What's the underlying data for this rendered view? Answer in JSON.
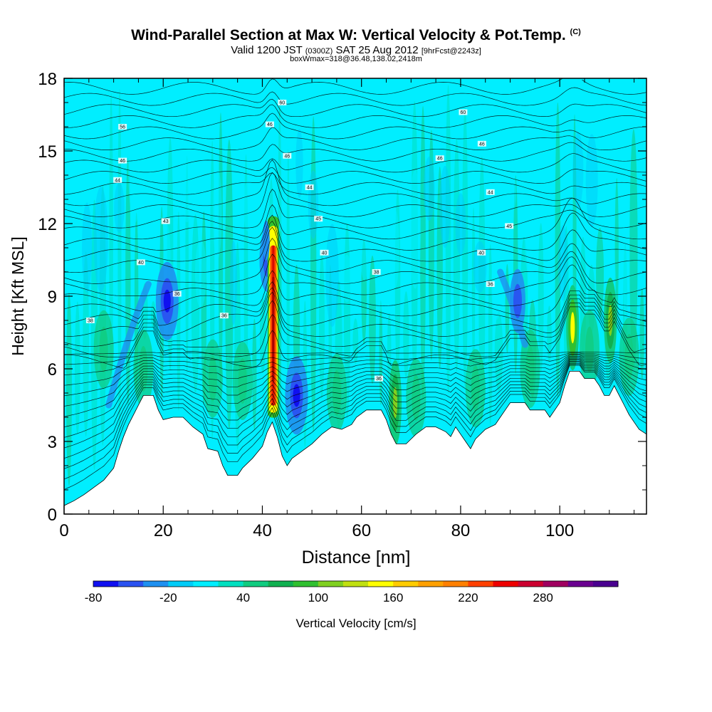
{
  "header": {
    "title": "Wind-Parallel Section at Max W: Vertical Velocity & Pot.Temp.",
    "title_mark": "(C)",
    "valid_prefix": "Valid 1200 JST",
    "valid_utc": "(0300Z)",
    "valid_date": "SAT 25 Aug 2012",
    "forecast": "[9hrFcst@2243z]",
    "box_info": "boxWmax=318@36.48,138.02,2418m"
  },
  "chart_data": {
    "type": "heatmap",
    "title": "Wind-Parallel Section at Max W: Vertical Velocity & Pot.Temp.",
    "xlabel": "Distance [nm]",
    "ylabel": "Height [Kft MSL]",
    "xlim": [
      0,
      117.5
    ],
    "ylim": [
      0,
      18
    ],
    "xticks": [
      0,
      20,
      40,
      60,
      80,
      100
    ],
    "yticks": [
      0,
      3,
      6,
      9,
      12,
      15,
      18
    ],
    "colorbar": {
      "label": "Vertical Velocity [cm/s]",
      "min": -80,
      "max": 340,
      "step": 20,
      "tick_values": [
        -80,
        -20,
        40,
        100,
        160,
        220,
        280
      ],
      "tick_labels": [
        "-80",
        "-20",
        "40",
        "100",
        "160",
        "220",
        "280"
      ],
      "colors": [
        "#1010f0",
        "#2a52f0",
        "#1e90f0",
        "#00ccf8",
        "#00eeff",
        "#00e0c0",
        "#10cc80",
        "#10b050",
        "#30c030",
        "#80d020",
        "#c0e010",
        "#ffff00",
        "#ffcc00",
        "#ffa000",
        "#ff8000",
        "#ff4000",
        "#ee0000",
        "#cc0030",
        "#a00060",
        "#6a0090",
        "#4a0090"
      ]
    },
    "terrain_kft": [
      [
        0,
        0.35
      ],
      [
        2,
        0.55
      ],
      [
        4,
        0.8
      ],
      [
        6,
        1.1
      ],
      [
        8,
        1.4
      ],
      [
        10,
        1.9
      ],
      [
        11,
        2.6
      ],
      [
        12,
        3.2
      ],
      [
        13,
        3.7
      ],
      [
        14,
        4.1
      ],
      [
        15,
        4.5
      ],
      [
        16,
        4.9
      ],
      [
        18,
        4.9
      ],
      [
        19,
        4.3
      ],
      [
        20,
        3.9
      ],
      [
        22,
        4.0
      ],
      [
        24,
        4.0
      ],
      [
        26,
        3.6
      ],
      [
        28,
        3.3
      ],
      [
        29,
        2.7
      ],
      [
        31,
        2.6
      ],
      [
        32,
        2.0
      ],
      [
        33,
        1.6
      ],
      [
        35,
        1.6
      ],
      [
        36,
        1.9
      ],
      [
        38,
        2.3
      ],
      [
        40,
        2.8
      ],
      [
        41,
        3.4
      ],
      [
        42,
        3.8
      ],
      [
        43,
        3.2
      ],
      [
        44,
        2.4
      ],
      [
        45,
        2.0
      ],
      [
        46,
        2.3
      ],
      [
        48,
        2.6
      ],
      [
        50,
        2.9
      ],
      [
        52,
        3.3
      ],
      [
        54,
        3.6
      ],
      [
        56,
        3.5
      ],
      [
        58,
        3.7
      ],
      [
        59,
        4.0
      ],
      [
        61,
        4.3
      ],
      [
        64,
        4.3
      ],
      [
        65,
        3.9
      ],
      [
        66,
        3.3
      ],
      [
        67,
        2.9
      ],
      [
        69,
        2.9
      ],
      [
        70,
        3.1
      ],
      [
        71,
        3.3
      ],
      [
        73,
        3.6
      ],
      [
        75,
        3.6
      ],
      [
        77,
        3.4
      ],
      [
        78,
        3.2
      ],
      [
        79,
        3.6
      ],
      [
        80,
        3.3
      ],
      [
        81,
        3.0
      ],
      [
        82,
        2.7
      ],
      [
        83,
        3.1
      ],
      [
        85,
        3.5
      ],
      [
        87,
        3.7
      ],
      [
        88,
        4.0
      ],
      [
        89,
        4.3
      ],
      [
        90,
        4.6
      ],
      [
        93,
        4.6
      ],
      [
        94,
        4.3
      ],
      [
        97,
        4.3
      ],
      [
        98,
        4.0
      ],
      [
        99,
        4.3
      ],
      [
        100,
        4.6
      ],
      [
        101,
        5.3
      ],
      [
        102,
        5.9
      ],
      [
        104,
        5.9
      ],
      [
        105,
        5.6
      ],
      [
        107,
        5.6
      ],
      [
        108,
        5.3
      ],
      [
        109,
        4.9
      ],
      [
        110,
        4.9
      ],
      [
        111,
        5.3
      ],
      [
        112,
        4.9
      ],
      [
        113,
        4.5
      ],
      [
        114,
        4.1
      ],
      [
        115,
        3.8
      ],
      [
        116,
        3.5
      ],
      [
        117.5,
        3.3
      ]
    ],
    "updrafts": [
      {
        "x": 42.2,
        "z": 7.2,
        "peak_cm_s": 318
      },
      {
        "x": 102.6,
        "z": 7.7,
        "peak_cm_s": 140
      },
      {
        "x": 66.8,
        "z": 4.6,
        "peak_cm_s": 100
      },
      {
        "x": 110.2,
        "z": 8.0,
        "peak_cm_s": 100
      }
    ],
    "downdrafts": [
      {
        "x": 20.8,
        "z": 8.8,
        "min_cm_s": -80
      },
      {
        "x": 46.9,
        "z": 4.9,
        "min_cm_s": -80
      },
      {
        "x": 41.0,
        "z": 10.5,
        "min_cm_s": -50
      },
      {
        "x": 91.5,
        "z": 8.8,
        "min_cm_s": -50
      }
    ],
    "theta_contour_labels": [
      {
        "x": 44.0,
        "z": 17.0,
        "text": "60"
      },
      {
        "x": 80.5,
        "z": 16.6,
        "text": "60"
      },
      {
        "x": 11.8,
        "z": 16.0,
        "text": "56"
      },
      {
        "x": 41.5,
        "z": 16.1,
        "text": "46"
      },
      {
        "x": 84.3,
        "z": 15.3,
        "text": "46"
      },
      {
        "x": 11.8,
        "z": 14.6,
        "text": "46"
      },
      {
        "x": 45.0,
        "z": 14.8,
        "text": "46"
      },
      {
        "x": 75.8,
        "z": 14.7,
        "text": "46"
      },
      {
        "x": 10.8,
        "z": 13.8,
        "text": "44"
      },
      {
        "x": 49.5,
        "z": 13.5,
        "text": "44"
      },
      {
        "x": 86.0,
        "z": 13.3,
        "text": "44"
      },
      {
        "x": 20.5,
        "z": 12.1,
        "text": "43"
      },
      {
        "x": 51.3,
        "z": 12.2,
        "text": "45"
      },
      {
        "x": 89.8,
        "z": 11.9,
        "text": "45"
      },
      {
        "x": 52.5,
        "z": 10.8,
        "text": "40"
      },
      {
        "x": 84.2,
        "z": 10.8,
        "text": "40"
      },
      {
        "x": 15.5,
        "z": 10.4,
        "text": "40"
      },
      {
        "x": 63.0,
        "z": 10.0,
        "text": "38"
      },
      {
        "x": 86.0,
        "z": 9.5,
        "text": "36"
      },
      {
        "x": 22.8,
        "z": 9.1,
        "text": "36"
      },
      {
        "x": 32.3,
        "z": 8.2,
        "text": "36"
      },
      {
        "x": 5.3,
        "z": 8.0,
        "text": "38"
      },
      {
        "x": 63.5,
        "z": 5.6,
        "text": "36"
      }
    ]
  }
}
